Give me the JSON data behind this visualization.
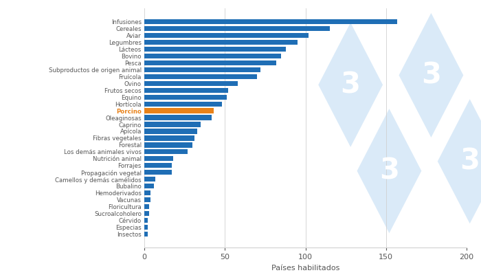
{
  "categories": [
    "Infusiones",
    "Cereales",
    "Aviar",
    "Legumbres",
    "Lácteos",
    "Bovino",
    "Pesca",
    "Subproductos de origen animal",
    "Fruícola",
    "Ovino",
    "Frutos secos",
    "Equino",
    "Hortícola",
    "Porcino",
    "Oleaginosas",
    "Caprino",
    "Apícola",
    "Fibras vegetales",
    "Forestal",
    "Los demás animales vivos",
    "Nutrición animal",
    "Forrajes",
    "Propagación vegetal",
    "Camellos y demás camélidos",
    "Bubalino",
    "Hemoderivados",
    "Vacunas",
    "Floricultura",
    "Sucroalcoholero",
    "Cérvido",
    "Especias",
    "Insectos"
  ],
  "values": [
    157,
    115,
    102,
    95,
    88,
    85,
    82,
    72,
    70,
    58,
    52,
    51,
    48,
    43,
    42,
    35,
    33,
    31,
    30,
    27,
    18,
    17,
    17,
    7,
    6,
    4,
    4,
    3,
    3,
    2,
    2,
    2
  ],
  "bar_color_default": "#1f6eb5",
  "bar_color_highlight": "#e8821a",
  "highlight_category": "Porcino",
  "xlabel": "Países habilitados",
  "xlim": [
    0,
    200
  ],
  "xticks": [
    0,
    50,
    100,
    150,
    200
  ],
  "background_color": "#ffffff",
  "grid_color": "#d0d0d0",
  "label_color_default": "#555555",
  "label_color_highlight": "#e8821a",
  "watermark_color": "#daeaf8",
  "watermark_text_color": "#ffffff",
  "bar_height": 0.72
}
